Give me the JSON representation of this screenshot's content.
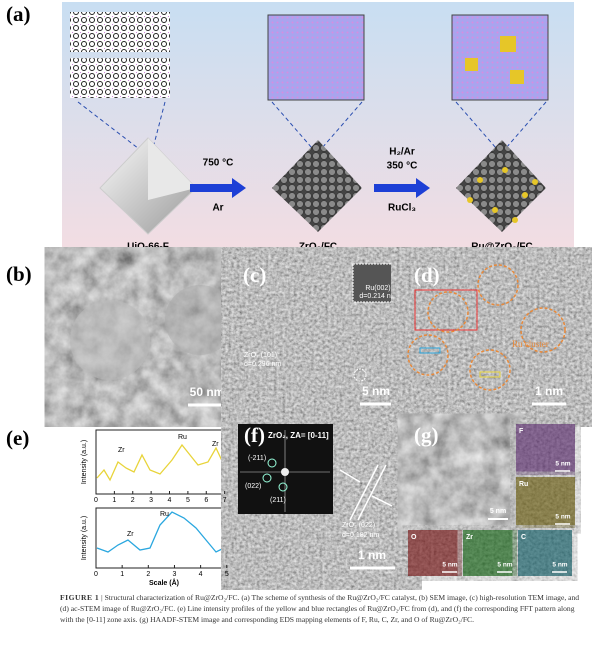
{
  "panel_a": {
    "label": "(a)",
    "step1_temp": "750 °C",
    "step1_gas": "Ar",
    "step2_gas": "H₂/Ar",
    "step2_temp": "350 °C",
    "step2_reagent": "RuCl₃",
    "names": [
      "UiO-66-F",
      "ZrO₂/FC",
      "Ru@ZrO₂/FC"
    ]
  },
  "panel_b": {
    "label": "(b)",
    "scale": "50 nm"
  },
  "panel_c": {
    "label": "(c)",
    "lattice1": "ZrO₂ (101)",
    "d1": "d=0.296 nm",
    "lattice2": "Ru(002)",
    "d2": "d=0.214 nm",
    "scale": "5 nm"
  },
  "panel_d": {
    "label": "(d)",
    "annotation": "Ru cluster",
    "scale": "1 nm"
  },
  "panel_e": {
    "label": "(e)",
    "y_label": "Intensity (a.u.)",
    "x_label": "Scale (Å)",
    "top": {
      "peaks": [
        "Zr",
        "Ru",
        "Zr"
      ],
      "xlim": [
        0,
        7.4
      ],
      "xticks": [
        0,
        1,
        2,
        3,
        4,
        5,
        6,
        7
      ]
    },
    "bottom": {
      "peaks": [
        "Zr",
        "Ru",
        "Zr"
      ],
      "xlim": [
        0,
        5.2
      ],
      "xticks": [
        0,
        1,
        2,
        3,
        4,
        5
      ]
    }
  },
  "panel_f": {
    "label": "(f)",
    "zone": "ZrO₂, ZA= [0-11]",
    "spots": [
      "(-211)",
      "(022)",
      "(211)"
    ],
    "lattice": "ZrO₂ (022)",
    "d": "d=0.182 nm",
    "scale": "1 nm"
  },
  "panel_g": {
    "label": "(g)",
    "main_scale": "5 nm",
    "maps": [
      {
        "element": "F",
        "scale": "5 nm"
      },
      {
        "element": "Ru",
        "scale": "5 nm"
      },
      {
        "element": "O",
        "scale": "5 nm"
      },
      {
        "element": "Zr",
        "scale": "5 nm"
      },
      {
        "element": "C",
        "scale": "5 nm"
      }
    ]
  },
  "caption": {
    "figure": "FIGURE 1",
    "separator": "|",
    "text": "Structural characterization of Ru@ZrO₂/FC. (a) The scheme of synthesis of the Ru@ZrO₂/FC catalyst, (b) SEM image, (c) high-resolution TEM image, and (d) ac-STEM image of Ru@ZrO₂/FC. (e) Line intensity profiles of the yellow and blue rectangles of Ru@ZrO₂/FC from (d), and (f) the corresponding FFT pattern along with the [0-11] zone axis. (g) HAADF-STEM image and corresponding EDS mapping elements of F, Ru, C, Zr, and O of Ru@ZrO₂/FC."
  }
}
